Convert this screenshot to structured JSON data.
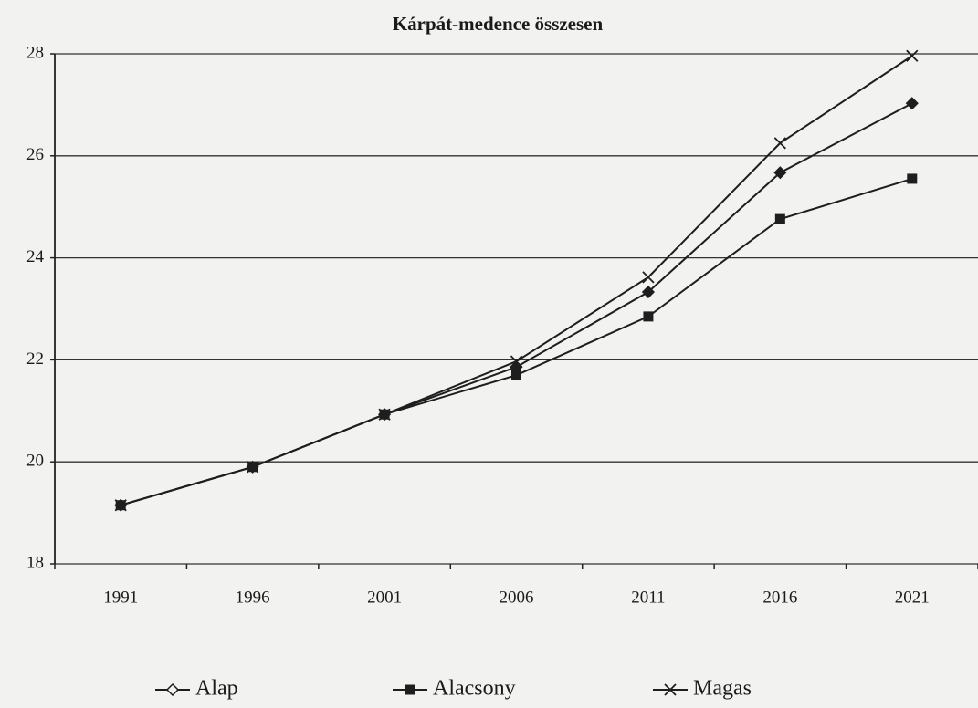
{
  "chart_data": {
    "type": "line",
    "title": "Kárpát-medence összesen",
    "categories": [
      "1991",
      "1996",
      "2001",
      "2006",
      "2011",
      "2016",
      "2021"
    ],
    "series": [
      {
        "name": "Alap",
        "color": "#1e1e1e",
        "marker": "diamond",
        "values": [
          19.15,
          19.9,
          20.93,
          21.86,
          23.33,
          25.67,
          27.03
        ]
      },
      {
        "name": "Alacsony",
        "color": "#1e1e1e",
        "marker": "square",
        "values": [
          19.15,
          19.9,
          20.93,
          21.7,
          22.85,
          24.76,
          25.55
        ]
      },
      {
        "name": "Magas",
        "color": "#1e1e1e",
        "marker": "x",
        "values": [
          19.15,
          19.9,
          20.93,
          21.97,
          23.62,
          26.25,
          27.96
        ]
      }
    ],
    "ylim": [
      18,
      28
    ],
    "yticks": [
      18,
      20,
      22,
      24,
      26,
      28
    ],
    "grid": true,
    "legend": "bottom"
  }
}
